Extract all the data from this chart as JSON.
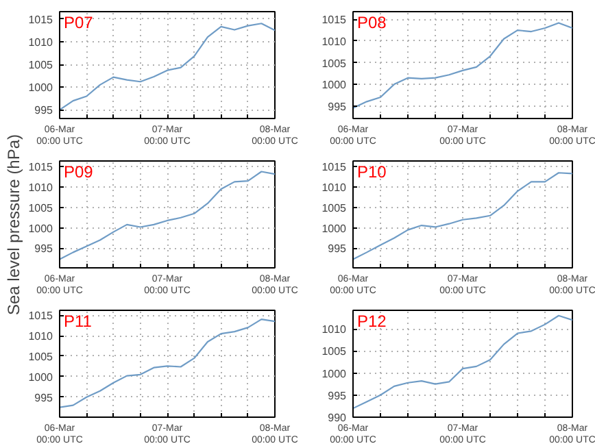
{
  "chart_data": [
    {
      "type": "line",
      "title": "P07",
      "categories": [
        "06-Mar\n00:00 UTC",
        null,
        null,
        null,
        null,
        null,
        null,
        null,
        "07-Mar\n00:00 UTC",
        null,
        null,
        null,
        null,
        null,
        null,
        null,
        "08-Mar\n00:00 UTC"
      ],
      "series": [
        {
          "color": "#6f9cc6",
          "values": [
            995,
            997,
            998,
            1000.5,
            1002.2,
            1001.6,
            1001.2,
            1002.3,
            1003.7,
            1004.3,
            1006.8,
            1011,
            1013.3,
            1012.6,
            1013.5,
            1014,
            1012.5
          ]
        }
      ],
      "ylim": [
        993.1,
        1016.6
      ],
      "yticks": [
        995,
        1000,
        1005,
        1010,
        1015
      ],
      "grid": true
    },
    {
      "type": "line",
      "title": "P08",
      "categories": [
        "06-Mar\n00:00 UTC",
        null,
        null,
        null,
        null,
        null,
        null,
        null,
        "07-Mar\n00:00 UTC",
        null,
        null,
        null,
        null,
        null,
        null,
        null,
        "08-Mar\n00:00 UTC"
      ],
      "series": [
        {
          "color": "#6f9cc6",
          "values": [
            994.5,
            996,
            997,
            1000,
            1001.5,
            1001.3,
            1001.5,
            1002.2,
            1003.2,
            1004,
            1006.5,
            1010.5,
            1012.5,
            1012.2,
            1013,
            1014.2,
            1013
          ]
        }
      ],
      "ylim": [
        992.1,
        1016.8
      ],
      "yticks": [
        995,
        1000,
        1005,
        1010,
        1015
      ],
      "grid": true
    },
    {
      "type": "line",
      "title": "P09",
      "ylabel": "Sea level pressure (hPa)",
      "categories": [
        "06-Mar\n00:00 UTC",
        null,
        null,
        null,
        null,
        null,
        null,
        null,
        "07-Mar\n00:00 UTC",
        null,
        null,
        null,
        null,
        null,
        null,
        null,
        "08-Mar\n00:00 UTC"
      ],
      "series": [
        {
          "color": "#6f9cc6",
          "values": [
            992.3,
            994,
            995.5,
            997,
            999,
            1000.8,
            1000.2,
            1000.8,
            1001.8,
            1002.5,
            1003.5,
            1006,
            1009.5,
            1011.3,
            1011.5,
            1013.8,
            1013.2
          ]
        }
      ],
      "ylim": [
        990.2,
        1016.4
      ],
      "yticks": [
        995,
        1000,
        1005,
        1010,
        1015
      ],
      "grid": true
    },
    {
      "type": "line",
      "title": "P10",
      "categories": [
        "06-Mar\n00:00 UTC",
        null,
        null,
        null,
        null,
        null,
        null,
        null,
        "07-Mar\n00:00 UTC",
        null,
        null,
        null,
        null,
        null,
        null,
        null,
        "08-Mar\n00:00 UTC"
      ],
      "series": [
        {
          "color": "#6f9cc6",
          "values": [
            992.3,
            994,
            995.8,
            997.5,
            999.5,
            1000.6,
            1000.2,
            1001,
            1002,
            1002.4,
            1003,
            1005.5,
            1009,
            1011.3,
            1011.3,
            1013.5,
            1013.3
          ]
        }
      ],
      "ylim": [
        990.2,
        1016.4
      ],
      "yticks": [
        995,
        1000,
        1005,
        1010,
        1015
      ],
      "grid": true
    },
    {
      "type": "line",
      "title": "P11",
      "categories": [
        "06-Mar\n00:00 UTC",
        null,
        null,
        null,
        null,
        null,
        null,
        null,
        "07-Mar\n00:00 UTC",
        null,
        null,
        null,
        null,
        null,
        null,
        null,
        "08-Mar\n00:00 UTC"
      ],
      "series": [
        {
          "color": "#6f9cc6",
          "values": [
            992.5,
            993,
            995,
            996.5,
            998.5,
            1000.2,
            1000.5,
            1002.2,
            1002.6,
            1002.4,
            1004.5,
            1008.5,
            1010.5,
            1011,
            1012,
            1014,
            1013.5
          ]
        }
      ],
      "ylim": [
        990.1,
        1016.2
      ],
      "yticks": [
        995,
        1000,
        1005,
        1010,
        1015
      ],
      "grid": true
    },
    {
      "type": "line",
      "title": "P12",
      "categories": [
        "06-Mar\n00:00 UTC",
        null,
        null,
        null,
        null,
        null,
        null,
        null,
        "07-Mar\n00:00 UTC",
        null,
        null,
        null,
        null,
        null,
        null,
        null,
        "08-Mar\n00:00 UTC"
      ],
      "series": [
        {
          "color": "#6f9cc6",
          "values": [
            992,
            993.5,
            995,
            997,
            997.8,
            998.2,
            997.5,
            998,
            1001,
            1001.5,
            1003,
            1006.5,
            1009,
            1009.5,
            1011,
            1013,
            1012
          ]
        }
      ],
      "ylim": [
        990,
        1014.2
      ],
      "yticks": [
        990,
        995,
        1000,
        1005,
        1010
      ],
      "grid": true
    }
  ]
}
